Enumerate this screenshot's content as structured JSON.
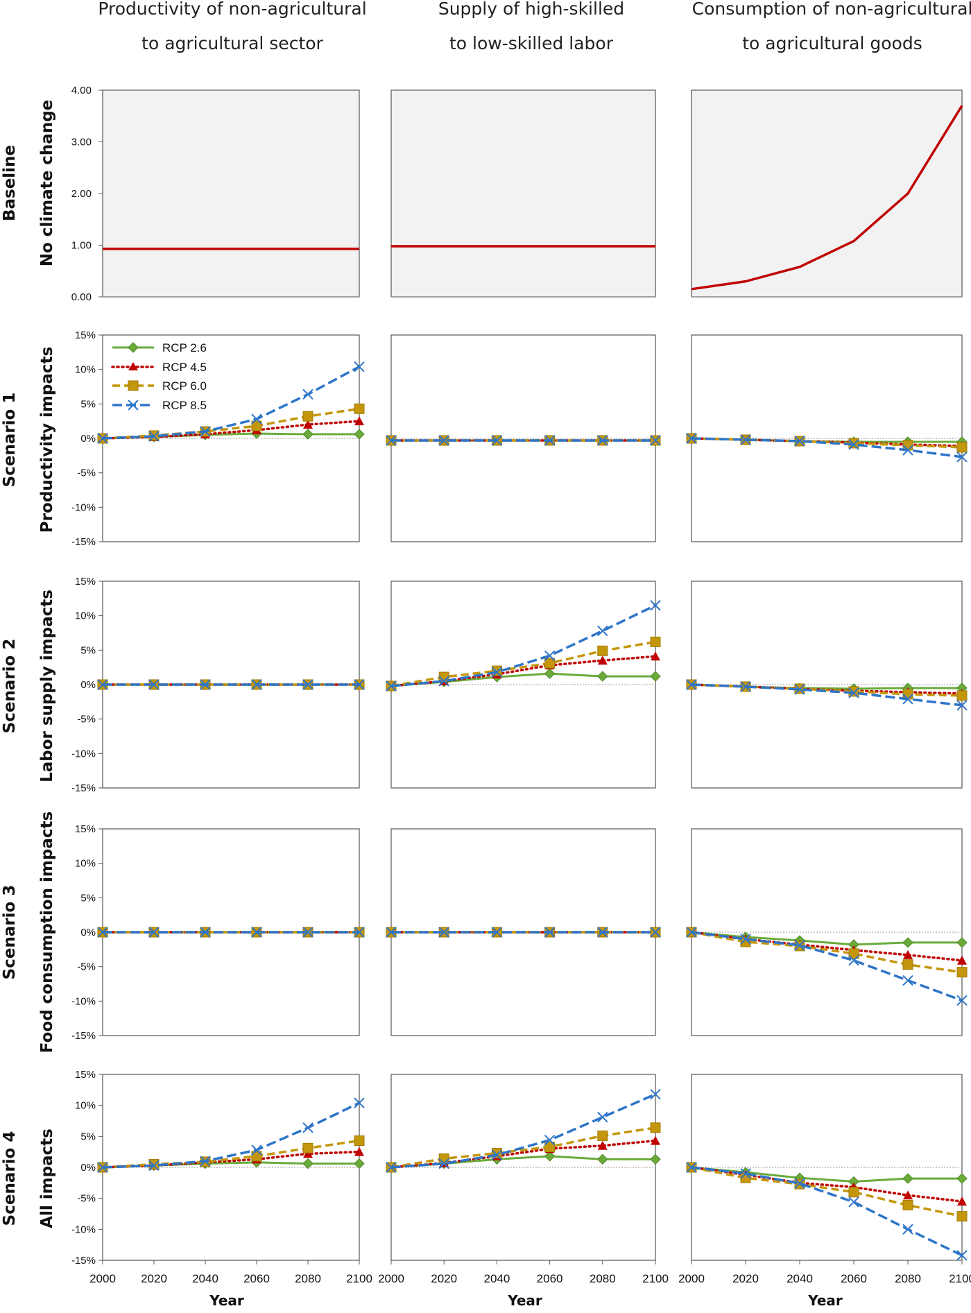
{
  "columns": [
    {
      "line1": "Productivity of non-agricultural",
      "line2": "to agricultural sector"
    },
    {
      "line1": "Supply of high-skilled",
      "line2": "to low-skilled labor"
    },
    {
      "line1": "Consumption of non-agricultural",
      "line2": "to agricultural goods"
    }
  ],
  "rows": [
    {
      "scenario": "Baseline",
      "subtitle": "No climate change"
    },
    {
      "scenario": "Scenario 1",
      "subtitle": "Productivity impacts"
    },
    {
      "scenario": "Scenario 2",
      "subtitle": "Labor supply impacts"
    },
    {
      "scenario": "Scenario 3",
      "subtitle": "Food consumption impacts"
    },
    {
      "scenario": "Scenario 4",
      "subtitle": "All impacts"
    }
  ],
  "x_axis_label": "Year",
  "x_ticks": [
    "2000",
    "2020",
    "2040",
    "2060",
    "2080",
    "2100"
  ],
  "baseline_y_ticks": [
    "0.00",
    "1.00",
    "2.00",
    "3.00",
    "4.00"
  ],
  "impact_y_ticks": [
    "-15%",
    "-10%",
    "-5%",
    "0%",
    "5%",
    "10%",
    "15%"
  ],
  "legend": [
    "RCP 2.6",
    "RCP 4.5",
    "RCP 6.0",
    "RCP 8.5"
  ],
  "colors": {
    "baseline": "#C00000",
    "rcp26": "#6AAB3A",
    "rcp45": "#C00000",
    "rcp60": "#C4960C",
    "rcp85": "#2E75C8",
    "baseline_fill": "#F2F2F2"
  },
  "chart_data": {
    "type": "line",
    "x": [
      2000,
      2020,
      2040,
      2060,
      2080,
      2100
    ],
    "baseline": {
      "ylim": [
        0,
        4
      ],
      "series": [
        {
          "values": [
            0.93,
            0.93,
            0.93,
            0.93,
            0.93,
            0.93
          ]
        },
        {
          "values": [
            0.98,
            0.98,
            0.98,
            0.98,
            0.98,
            0.98
          ]
        },
        {
          "values": [
            0.15,
            0.3,
            0.58,
            1.08,
            2.0,
            3.7
          ]
        }
      ]
    },
    "impacts_ylim": [
      -15,
      15
    ],
    "impacts_unit": "%",
    "panels": [
      {
        "row": "Scenario 1",
        "col": 1,
        "series": [
          {
            "name": "RCP 2.6",
            "values": [
              0,
              0.2,
              0.5,
              0.7,
              0.6,
              0.6
            ]
          },
          {
            "name": "RCP 4.5",
            "values": [
              0,
              0.2,
              0.6,
              1.2,
              2.0,
              2.5
            ]
          },
          {
            "name": "RCP 6.0",
            "values": [
              0,
              0.4,
              1.0,
              1.8,
              3.2,
              4.3
            ]
          },
          {
            "name": "RCP 8.5",
            "values": [
              0,
              0.3,
              1.0,
              2.8,
              6.4,
              10.4
            ]
          }
        ]
      },
      {
        "row": "Scenario 1",
        "col": 2,
        "series": [
          {
            "name": "RCP 2.6",
            "values": [
              -0.3,
              -0.3,
              -0.3,
              -0.3,
              -0.3,
              -0.3
            ]
          },
          {
            "name": "RCP 4.5",
            "values": [
              -0.3,
              -0.3,
              -0.3,
              -0.3,
              -0.3,
              -0.3
            ]
          },
          {
            "name": "RCP 6.0",
            "values": [
              -0.3,
              -0.3,
              -0.3,
              -0.3,
              -0.3,
              -0.3
            ]
          },
          {
            "name": "RCP 8.5",
            "values": [
              -0.3,
              -0.3,
              -0.3,
              -0.3,
              -0.3,
              -0.3
            ]
          }
        ]
      },
      {
        "row": "Scenario 1",
        "col": 3,
        "series": [
          {
            "name": "RCP 2.6",
            "values": [
              0,
              -0.2,
              -0.4,
              -0.5,
              -0.5,
              -0.5
            ]
          },
          {
            "name": "RCP 4.5",
            "values": [
              0,
              -0.2,
              -0.4,
              -0.6,
              -0.9,
              -1.1
            ]
          },
          {
            "name": "RCP 6.0",
            "values": [
              0,
              -0.2,
              -0.4,
              -0.7,
              -1.0,
              -1.3
            ]
          },
          {
            "name": "RCP 8.5",
            "values": [
              0,
              -0.2,
              -0.4,
              -0.9,
              -1.7,
              -2.7
            ]
          }
        ]
      },
      {
        "row": "Scenario 2",
        "col": 1,
        "series": [
          {
            "name": "RCP 2.6",
            "values": [
              0,
              0,
              0,
              0,
              0,
              0
            ]
          },
          {
            "name": "RCP 4.5",
            "values": [
              0,
              0,
              0,
              0,
              0,
              0
            ]
          },
          {
            "name": "RCP 6.0",
            "values": [
              0,
              0,
              0,
              0,
              0,
              0
            ]
          },
          {
            "name": "RCP 8.5",
            "values": [
              0,
              0,
              0,
              0,
              0,
              0
            ]
          }
        ]
      },
      {
        "row": "Scenario 2",
        "col": 2,
        "series": [
          {
            "name": "RCP 2.6",
            "values": [
              -0.2,
              0.4,
              1.1,
              1.6,
              1.2,
              1.2
            ]
          },
          {
            "name": "RCP 4.5",
            "values": [
              -0.2,
              0.5,
              1.5,
              2.8,
              3.5,
              4.1
            ]
          },
          {
            "name": "RCP 6.0",
            "values": [
              -0.2,
              1.1,
              2.0,
              3.1,
              4.9,
              6.2
            ]
          },
          {
            "name": "RCP 8.5",
            "values": [
              -0.2,
              0.5,
              1.8,
              4.2,
              7.8,
              11.5
            ]
          }
        ]
      },
      {
        "row": "Scenario 2",
        "col": 3,
        "series": [
          {
            "name": "RCP 2.6",
            "values": [
              0,
              -0.3,
              -0.5,
              -0.6,
              -0.5,
              -0.5
            ]
          },
          {
            "name": "RCP 4.5",
            "values": [
              0,
              -0.3,
              -0.6,
              -0.9,
              -1.1,
              -1.3
            ]
          },
          {
            "name": "RCP 6.0",
            "values": [
              0,
              -0.3,
              -0.6,
              -1.0,
              -1.4,
              -1.6
            ]
          },
          {
            "name": "RCP 8.5",
            "values": [
              0,
              -0.3,
              -0.7,
              -1.2,
              -2.1,
              -3.0
            ]
          }
        ]
      },
      {
        "row": "Scenario 3",
        "col": 1,
        "series": [
          {
            "name": "RCP 2.6",
            "values": [
              0,
              0,
              0,
              0,
              0,
              0
            ]
          },
          {
            "name": "RCP 4.5",
            "values": [
              0,
              0,
              0,
              0,
              0,
              0
            ]
          },
          {
            "name": "RCP 6.0",
            "values": [
              0,
              0,
              0,
              0,
              0,
              0
            ]
          },
          {
            "name": "RCP 8.5",
            "values": [
              0,
              0,
              0,
              0,
              0,
              0
            ]
          }
        ]
      },
      {
        "row": "Scenario 3",
        "col": 2,
        "series": [
          {
            "name": "RCP 2.6",
            "values": [
              0,
              0,
              0,
              0,
              0,
              0
            ]
          },
          {
            "name": "RCP 4.5",
            "values": [
              0,
              0,
              0,
              0,
              0,
              0
            ]
          },
          {
            "name": "RCP 6.0",
            "values": [
              0,
              0,
              0,
              0,
              0,
              0
            ]
          },
          {
            "name": "RCP 8.5",
            "values": [
              0,
              0,
              0,
              0,
              0,
              0
            ]
          }
        ]
      },
      {
        "row": "Scenario 3",
        "col": 3,
        "series": [
          {
            "name": "RCP 2.6",
            "values": [
              0,
              -0.7,
              -1.2,
              -1.8,
              -1.5,
              -1.5
            ]
          },
          {
            "name": "RCP 4.5",
            "values": [
              0,
              -1.0,
              -1.8,
              -2.6,
              -3.3,
              -4.1
            ]
          },
          {
            "name": "RCP 6.0",
            "values": [
              0,
              -1.4,
              -2.0,
              -3.1,
              -4.7,
              -5.8
            ]
          },
          {
            "name": "RCP 8.5",
            "values": [
              0,
              -1.0,
              -1.9,
              -4.1,
              -7.0,
              -9.9
            ]
          }
        ]
      },
      {
        "row": "Scenario 4",
        "col": 1,
        "series": [
          {
            "name": "RCP 2.6",
            "values": [
              0,
              0.3,
              0.6,
              0.8,
              0.6,
              0.6
            ]
          },
          {
            "name": "RCP 4.5",
            "values": [
              0,
              0.3,
              0.8,
              1.3,
              2.2,
              2.5
            ]
          },
          {
            "name": "RCP 6.0",
            "values": [
              0,
              0.5,
              0.9,
              1.8,
              3.1,
              4.3
            ]
          },
          {
            "name": "RCP 8.5",
            "values": [
              0,
              0.3,
              1.0,
              2.8,
              6.4,
              10.4
            ]
          }
        ]
      },
      {
        "row": "Scenario 4",
        "col": 2,
        "series": [
          {
            "name": "RCP 2.6",
            "values": [
              0,
              0.6,
              1.3,
              1.8,
              1.3,
              1.3
            ]
          },
          {
            "name": "RCP 4.5",
            "values": [
              0,
              0.7,
              1.8,
              3.0,
              3.5,
              4.3
            ]
          },
          {
            "name": "RCP 6.0",
            "values": [
              0,
              1.4,
              2.3,
              3.3,
              5.1,
              6.4
            ]
          },
          {
            "name": "RCP 8.5",
            "values": [
              0,
              0.6,
              2.0,
              4.4,
              8.1,
              11.8
            ]
          }
        ]
      },
      {
        "row": "Scenario 4",
        "col": 3,
        "series": [
          {
            "name": "RCP 2.6",
            "values": [
              0,
              -0.8,
              -1.7,
              -2.3,
              -1.8,
              -1.8
            ]
          },
          {
            "name": "RCP 4.5",
            "values": [
              0,
              -1.2,
              -2.5,
              -3.2,
              -4.5,
              -5.5
            ]
          },
          {
            "name": "RCP 6.0",
            "values": [
              0,
              -1.7,
              -2.7,
              -4.0,
              -6.1,
              -7.9
            ]
          },
          {
            "name": "RCP 8.5",
            "values": [
              0,
              -1.0,
              -2.6,
              -5.6,
              -10.0,
              -14.2
            ]
          }
        ]
      }
    ]
  }
}
